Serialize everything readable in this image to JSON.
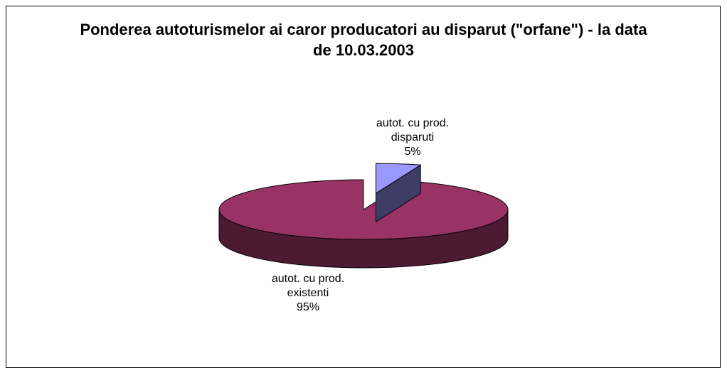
{
  "chart_data": {
    "type": "pie",
    "title": "Ponderea autoturismelor ai caror producatori au disparut (\"orfane\") - la data de 10.03.2003",
    "categories": [
      "autot. cu prod. disparuti",
      "autot. cu prod. existenti"
    ],
    "values": [
      5,
      95
    ],
    "value_labels": [
      "5%",
      "95%"
    ],
    "colors": [
      "#9999ff",
      "#993366"
    ]
  }
}
